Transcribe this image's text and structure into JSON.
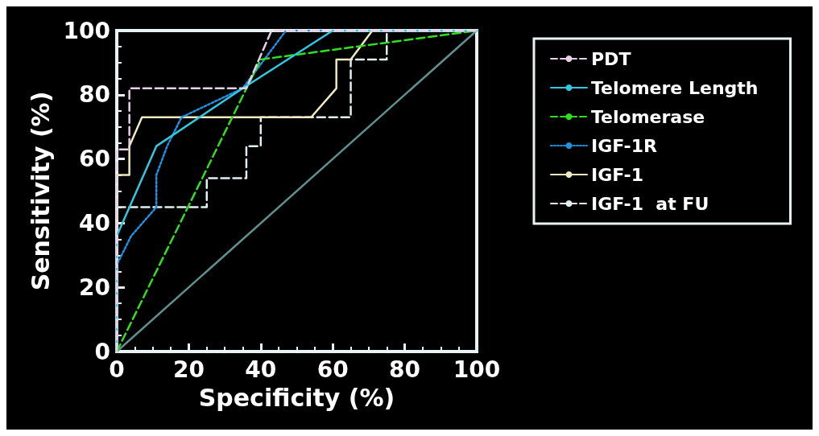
{
  "chart_data": {
    "type": "line",
    "xlabel": "Specificity (%)",
    "ylabel": "Sensitivity (%)",
    "xlim": [
      0,
      100
    ],
    "ylim": [
      0,
      100
    ],
    "xticks": [
      0,
      20,
      40,
      60,
      80,
      100
    ],
    "yticks": [
      0,
      20,
      40,
      60,
      80,
      100
    ],
    "grid": false,
    "legend": "right",
    "marker": "none",
    "series": [
      {
        "name": "PDT",
        "color": "#e8d0e8",
        "line_style": "dashed",
        "x": [
          0,
          0,
          3.5,
          3.5,
          36,
          43,
          100
        ],
        "values": [
          0,
          63,
          63,
          82,
          82,
          100,
          100
        ]
      },
      {
        "name": "Telomere Length",
        "color": "#30c8e0",
        "line_style": "solid",
        "x": [
          0,
          0,
          11,
          35,
          60,
          100
        ],
        "values": [
          0,
          36,
          64,
          82,
          100,
          100
        ]
      },
      {
        "name": "Telomerase",
        "color": "#30e020",
        "line_style": "dashed",
        "x": [
          0,
          40,
          100
        ],
        "values": [
          0,
          91,
          100
        ]
      },
      {
        "name": "IGF-1R",
        "color": "#2090e0",
        "line_style": "dotted",
        "x": [
          0,
          0,
          4,
          11,
          11,
          14,
          18,
          35,
          47,
          100
        ],
        "values": [
          0,
          27,
          36,
          45,
          55,
          64,
          73,
          82,
          100,
          100
        ]
      },
      {
        "name": "IGF-1",
        "color": "#f0e8c0",
        "line_style": "solid",
        "x": [
          0,
          0,
          3.5,
          3.5,
          7,
          54,
          61,
          61,
          65,
          71,
          100
        ],
        "values": [
          0,
          55,
          55,
          64,
          73,
          73,
          82,
          91,
          91,
          100,
          100
        ]
      },
      {
        "name": "IGF-1  at FU",
        "color": "#e0f0f0",
        "line_style": "dashed",
        "x": [
          0,
          0,
          25,
          25,
          36,
          36,
          40,
          40,
          65,
          65,
          75,
          75,
          100
        ],
        "values": [
          0,
          45,
          45,
          54,
          54,
          64,
          64,
          73,
          73,
          91,
          91,
          100,
          100
        ]
      },
      {
        "color": "#5f8f8f",
        "line_style": "solid",
        "x": [
          0,
          100
        ],
        "values": [
          0,
          100
        ]
      }
    ]
  }
}
